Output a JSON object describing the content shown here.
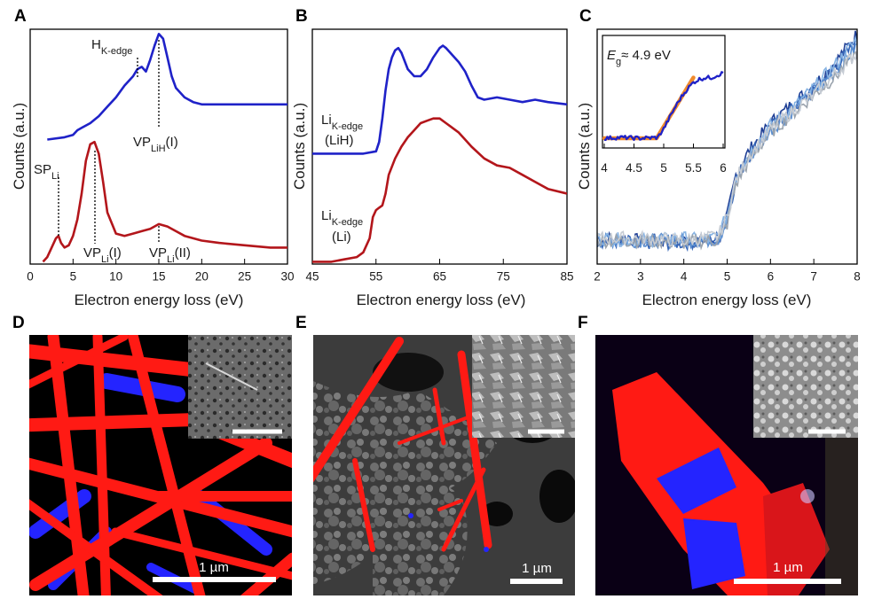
{
  "panels": {
    "A": {
      "label": "A"
    },
    "B": {
      "label": "B"
    },
    "C": {
      "label": "C"
    },
    "D": {
      "label": "D",
      "scale_bar": "1 µm"
    },
    "E": {
      "label": "E",
      "scale_bar": "1 µm"
    },
    "F": {
      "label": "F",
      "scale_bar": "1 µm"
    }
  },
  "colors": {
    "blue": "#1f22c8",
    "red": "#b3161b",
    "orange": "#f08a2c",
    "map_red": "#ff1a14",
    "map_blue": "#2424ff"
  },
  "chart_data": [
    {
      "panel": "A",
      "type": "line",
      "xlabel": "Electron energy loss (eV)",
      "ylabel": "Counts (a.u.)",
      "xlim": [
        0,
        30
      ],
      "ylim": [
        0,
        1
      ],
      "grid": false,
      "x_ticks": [
        0,
        5,
        10,
        15,
        20,
        25,
        30
      ],
      "series": [
        {
          "color": "#1f22c8",
          "x": [
            2,
            4,
            5,
            5.5,
            6,
            7,
            8,
            9,
            10,
            11,
            12,
            12.5,
            13,
            13.5,
            14,
            14.5,
            15,
            15.5,
            16,
            16.5,
            17,
            18,
            19,
            20,
            22,
            25,
            28,
            30
          ],
          "y": [
            0.53,
            0.54,
            0.55,
            0.57,
            0.58,
            0.6,
            0.63,
            0.67,
            0.71,
            0.76,
            0.8,
            0.83,
            0.84,
            0.82,
            0.87,
            0.93,
            0.98,
            0.96,
            0.88,
            0.8,
            0.75,
            0.71,
            0.69,
            0.68,
            0.68,
            0.68,
            0.68,
            0.68
          ]
        },
        {
          "color": "#b3161b",
          "x": [
            1.5,
            2,
            2.5,
            3,
            3.3,
            3.6,
            4,
            4.5,
            5,
            5.5,
            6,
            6.5,
            7,
            7.5,
            8,
            8.5,
            9,
            10,
            11,
            12,
            13,
            14,
            15,
            16,
            17,
            18,
            20,
            22,
            25,
            28,
            30
          ],
          "y": [
            0.01,
            0.03,
            0.07,
            0.11,
            0.12,
            0.09,
            0.07,
            0.08,
            0.12,
            0.19,
            0.3,
            0.44,
            0.51,
            0.52,
            0.47,
            0.35,
            0.22,
            0.13,
            0.12,
            0.13,
            0.14,
            0.15,
            0.17,
            0.16,
            0.14,
            0.12,
            0.1,
            0.09,
            0.08,
            0.07,
            0.07
          ]
        }
      ],
      "annotations": [
        {
          "text": "H",
          "sub": "K-edge",
          "x": 12.6,
          "y0": 0.8,
          "y1": 0.88
        },
        {
          "text": "VP",
          "sub": "LiH",
          "suffix": "(I)",
          "x": 15,
          "y0": 0.57,
          "y1": 0.98
        },
        {
          "text": "SP",
          "sub": "Li",
          "x": 3.2,
          "y0": 0.12,
          "y1": 0.34
        },
        {
          "text": "VP",
          "sub": "Li",
          "suffix": "(I)",
          "x": 7.5,
          "y0": 0.03,
          "y1": 0.52
        },
        {
          "text": "VP",
          "sub": "Li",
          "suffix": "(II)",
          "x": 15,
          "y0": 0.03,
          "y1": 0.16
        }
      ]
    },
    {
      "panel": "B",
      "type": "line",
      "xlabel": "Electron energy loss (eV)",
      "ylabel": "Counts (a.u.)",
      "xlim": [
        45,
        85
      ],
      "ylim": [
        0,
        1
      ],
      "grid": false,
      "x_ticks": [
        45,
        55,
        65,
        75,
        85
      ],
      "series": [
        {
          "color": "#1f22c8",
          "x": [
            45,
            48,
            50,
            53,
            55,
            55.5,
            56,
            56.5,
            57,
            57.5,
            58,
            58.5,
            59,
            60,
            61,
            62,
            63,
            64,
            65,
            65.5,
            66,
            67,
            68,
            69,
            70,
            71,
            72,
            74,
            76,
            78,
            80,
            82,
            85
          ],
          "y": [
            0.47,
            0.47,
            0.47,
            0.47,
            0.48,
            0.52,
            0.62,
            0.74,
            0.83,
            0.88,
            0.91,
            0.92,
            0.9,
            0.83,
            0.8,
            0.8,
            0.83,
            0.88,
            0.92,
            0.93,
            0.92,
            0.89,
            0.86,
            0.82,
            0.76,
            0.71,
            0.7,
            0.71,
            0.7,
            0.69,
            0.7,
            0.69,
            0.68
          ]
        },
        {
          "color": "#b3161b",
          "x": [
            45,
            48,
            50,
            52,
            53,
            54,
            54.5,
            55,
            55.5,
            56,
            56.5,
            57,
            58,
            59,
            60,
            61,
            62,
            63,
            64,
            65,
            66,
            67,
            68,
            69,
            70,
            72,
            74,
            76,
            78,
            80,
            82,
            85
          ],
          "y": [
            0.01,
            0.01,
            0.02,
            0.03,
            0.05,
            0.11,
            0.2,
            0.23,
            0.24,
            0.25,
            0.3,
            0.38,
            0.45,
            0.5,
            0.54,
            0.57,
            0.6,
            0.61,
            0.62,
            0.62,
            0.6,
            0.58,
            0.56,
            0.53,
            0.5,
            0.45,
            0.42,
            0.41,
            0.38,
            0.35,
            0.32,
            0.3
          ]
        }
      ],
      "annotations": [
        {
          "text": "Li",
          "sub": "K-edge",
          "line2": "(LiH)"
        },
        {
          "text": "Li",
          "sub": "K-edge",
          "line2": "(Li)"
        }
      ]
    },
    {
      "panel": "C",
      "type": "line",
      "xlabel": "Electron energy loss (eV)",
      "ylabel": "Counts (a.u.)",
      "xlim": [
        2,
        8
      ],
      "ylim": [
        0,
        1
      ],
      "grid": false,
      "x_ticks": [
        2,
        3,
        4,
        5,
        6,
        7,
        8
      ],
      "series": [
        {
          "color": "#1f3f95",
          "x": [
            2,
            3,
            4,
            4.5,
            4.8,
            5,
            5.2,
            5.5,
            6,
            6.5,
            7,
            7.5,
            8
          ],
          "y": [
            0.11,
            0.1,
            0.1,
            0.1,
            0.1,
            0.2,
            0.38,
            0.48,
            0.6,
            0.68,
            0.76,
            0.86,
            0.98
          ]
        },
        {
          "color": "#3566b8",
          "x": [
            2,
            3,
            4,
            4.5,
            4.8,
            5,
            5.2,
            5.5,
            6,
            6.5,
            7,
            7.5,
            8
          ],
          "y": [
            0.1,
            0.09,
            0.09,
            0.1,
            0.11,
            0.19,
            0.36,
            0.46,
            0.58,
            0.66,
            0.74,
            0.84,
            0.95
          ]
        },
        {
          "color": "#5a8ed0",
          "x": [
            2,
            3,
            4,
            4.5,
            4.8,
            5,
            5.2,
            5.5,
            6,
            6.5,
            7,
            7.5,
            8
          ],
          "y": [
            0.1,
            0.1,
            0.1,
            0.1,
            0.11,
            0.18,
            0.35,
            0.45,
            0.57,
            0.65,
            0.73,
            0.82,
            0.93
          ]
        },
        {
          "color": "#86b3e3",
          "x": [
            2,
            3,
            4,
            4.5,
            4.8,
            5,
            5.2,
            5.5,
            6,
            6.5,
            7,
            7.5,
            8
          ],
          "y": [
            0.11,
            0.1,
            0.11,
            0.1,
            0.12,
            0.21,
            0.37,
            0.47,
            0.59,
            0.66,
            0.75,
            0.85,
            0.96
          ]
        },
        {
          "color": "#9aa3ad",
          "x": [
            2,
            3,
            4,
            4.5,
            4.8,
            5,
            5.2,
            5.5,
            6,
            6.5,
            7,
            7.5,
            8
          ],
          "y": [
            0.1,
            0.1,
            0.09,
            0.1,
            0.1,
            0.17,
            0.34,
            0.44,
            0.56,
            0.64,
            0.72,
            0.8,
            0.9
          ]
        },
        {
          "color": "#c6ccd4",
          "x": [
            2,
            3,
            4,
            4.5,
            4.8,
            5,
            5.2,
            5.5,
            6,
            6.5,
            7,
            7.5,
            8
          ],
          "y": [
            0.11,
            0.11,
            0.1,
            0.11,
            0.12,
            0.2,
            0.36,
            0.46,
            0.57,
            0.65,
            0.72,
            0.81,
            0.9
          ]
        }
      ],
      "inset": {
        "xlim": [
          4,
          6
        ],
        "x_ticks": [
          4,
          4.5,
          5,
          5.5,
          6
        ],
        "label": "E",
        "label_sub": "g",
        "label_rest": "≈ 4.9 eV",
        "data": {
          "color": "#1f22c8",
          "x": [
            4,
            4.3,
            4.6,
            4.9,
            5.0,
            5.1,
            5.2,
            5.3,
            5.4,
            5.5,
            5.6,
            5.7,
            5.8,
            5.9,
            6.0
          ],
          "y": [
            0.1,
            0.11,
            0.1,
            0.11,
            0.22,
            0.36,
            0.5,
            0.62,
            0.72,
            0.8,
            0.84,
            0.86,
            0.86,
            0.89,
            0.92
          ]
        },
        "fit": {
          "color": "#f08a2c",
          "x": [
            4.0,
            4.88,
            5.5
          ],
          "y": [
            0.1,
            0.1,
            0.86
          ]
        }
      }
    }
  ]
}
